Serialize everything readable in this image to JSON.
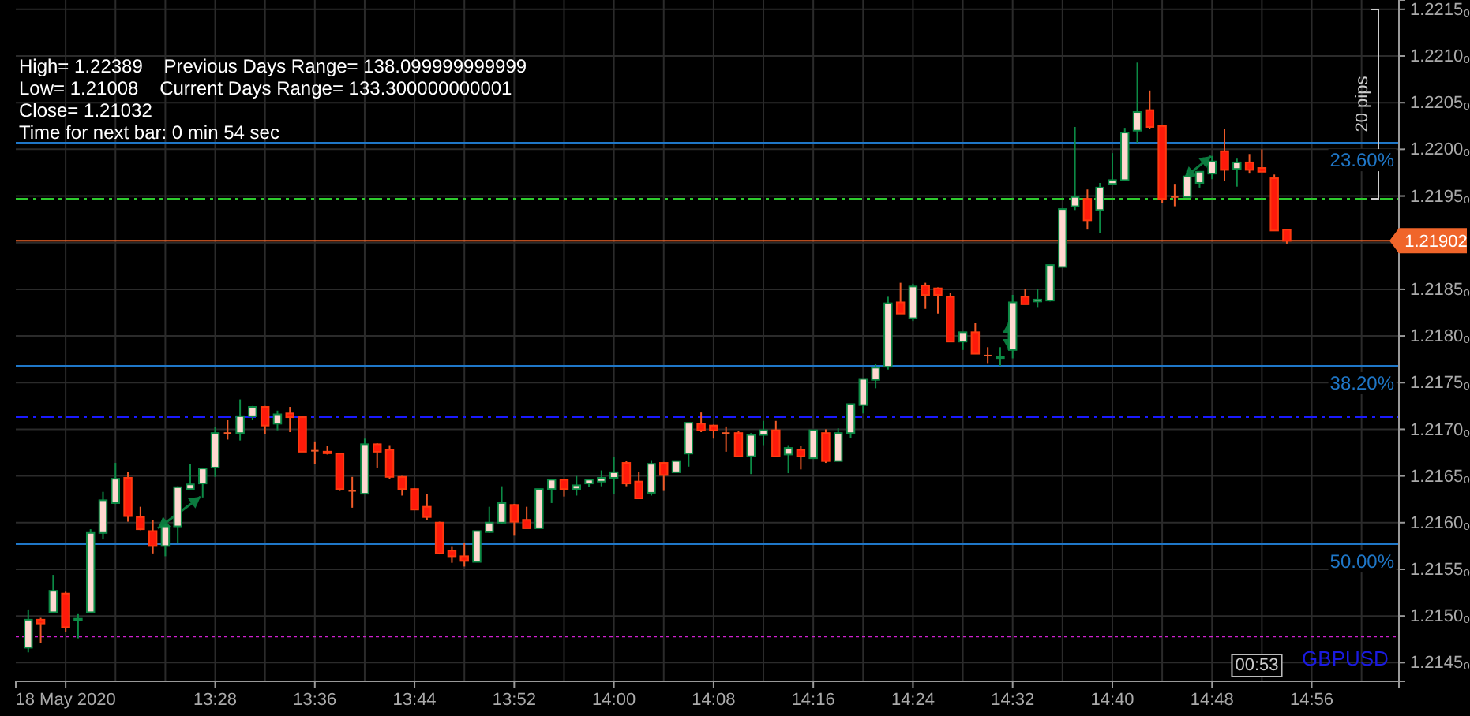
{
  "chart_data": {
    "type": "candlestick",
    "x": [
      "2020-05-18T13:13",
      "2020-05-18T13:14",
      "2020-05-18T13:15",
      "2020-05-18T13:16",
      "2020-05-18T13:17",
      "2020-05-18T13:18",
      "2020-05-18T13:19",
      "2020-05-18T13:20",
      "2020-05-18T13:21",
      "2020-05-18T13:22",
      "2020-05-18T13:23",
      "2020-05-18T13:24",
      "2020-05-18T13:25",
      "2020-05-18T13:26",
      "2020-05-18T13:27",
      "2020-05-18T13:28",
      "2020-05-18T13:29",
      "2020-05-18T13:30",
      "2020-05-18T13:31",
      "2020-05-18T13:32",
      "2020-05-18T13:33",
      "2020-05-18T13:34",
      "2020-05-18T13:35",
      "2020-05-18T13:36",
      "2020-05-18T13:37",
      "2020-05-18T13:38",
      "2020-05-18T13:39",
      "2020-05-18T13:40",
      "2020-05-18T13:41",
      "2020-05-18T13:42",
      "2020-05-18T13:43",
      "2020-05-18T13:44",
      "2020-05-18T13:45",
      "2020-05-18T13:46",
      "2020-05-18T13:47",
      "2020-05-18T13:48",
      "2020-05-18T13:49",
      "2020-05-18T13:50",
      "2020-05-18T13:51",
      "2020-05-18T13:52",
      "2020-05-18T13:53",
      "2020-05-18T13:54",
      "2020-05-18T13:55",
      "2020-05-18T13:56",
      "2020-05-18T13:57",
      "2020-05-18T13:58",
      "2020-05-18T13:59",
      "2020-05-18T14:00",
      "2020-05-18T14:01",
      "2020-05-18T14:02",
      "2020-05-18T14:03",
      "2020-05-18T14:04",
      "2020-05-18T14:05",
      "2020-05-18T14:06",
      "2020-05-18T14:07",
      "2020-05-18T14:08",
      "2020-05-18T14:09",
      "2020-05-18T14:10",
      "2020-05-18T14:11",
      "2020-05-18T14:12",
      "2020-05-18T14:13",
      "2020-05-18T14:14",
      "2020-05-18T14:15",
      "2020-05-18T14:16",
      "2020-05-18T14:17",
      "2020-05-18T14:18",
      "2020-05-18T14:19",
      "2020-05-18T14:20",
      "2020-05-18T14:21",
      "2020-05-18T14:22",
      "2020-05-18T14:23",
      "2020-05-18T14:24",
      "2020-05-18T14:25",
      "2020-05-18T14:26",
      "2020-05-18T14:27",
      "2020-05-18T14:28",
      "2020-05-18T14:29",
      "2020-05-18T14:30",
      "2020-05-18T14:31",
      "2020-05-18T14:32",
      "2020-05-18T14:33",
      "2020-05-18T14:34",
      "2020-05-18T14:35",
      "2020-05-18T14:36",
      "2020-05-18T14:37",
      "2020-05-18T14:38",
      "2020-05-18T14:39",
      "2020-05-18T14:40",
      "2020-05-18T14:41",
      "2020-05-18T14:42",
      "2020-05-18T14:43",
      "2020-05-18T14:44",
      "2020-05-18T14:45",
      "2020-05-18T14:46",
      "2020-05-18T14:47",
      "2020-05-18T14:48",
      "2020-05-18T14:49",
      "2020-05-18T14:50",
      "2020-05-18T14:51",
      "2020-05-18T14:52",
      "2020-05-18T14:53",
      "2020-05-18T14:54"
    ],
    "ohlc": [
      [
        1.21466,
        1.21507,
        1.21461,
        1.21496
      ],
      [
        1.21496,
        1.21498,
        1.21471,
        1.21492
      ],
      [
        1.21504,
        1.21544,
        1.21503,
        1.21527
      ],
      [
        1.21524,
        1.21526,
        1.21483,
        1.21488
      ],
      [
        1.21496,
        1.21502,
        1.21476,
        1.21497
      ],
      [
        1.21504,
        1.21593,
        1.21503,
        1.21589
      ],
      [
        1.21589,
        1.21633,
        1.21582,
        1.21624
      ],
      [
        1.21621,
        1.21664,
        1.2162,
        1.21647
      ],
      [
        1.21648,
        1.21654,
        1.21601,
        1.21607
      ],
      [
        1.21606,
        1.21617,
        1.21592,
        1.21593
      ],
      [
        1.21591,
        1.21603,
        1.21567,
        1.21575
      ],
      [
        1.21575,
        1.21599,
        1.21564,
        1.21596
      ],
      [
        1.21596,
        1.21639,
        1.21578,
        1.21638
      ],
      [
        1.21636,
        1.21663,
        1.21636,
        1.21641
      ],
      [
        1.21642,
        1.21659,
        1.21627,
        1.21658
      ],
      [
        1.21659,
        1.21702,
        1.21649,
        1.21696
      ],
      [
        1.21696,
        1.2171,
        1.21689,
        1.21696
      ],
      [
        1.21696,
        1.21732,
        1.21688,
        1.21714
      ],
      [
        1.21714,
        1.21725,
        1.2171,
        1.21724
      ],
      [
        1.21724,
        1.21725,
        1.21695,
        1.21704
      ],
      [
        1.21706,
        1.2172,
        1.21699,
        1.21716
      ],
      [
        1.21717,
        1.21724,
        1.21697,
        1.21713
      ],
      [
        1.21713,
        1.21714,
        1.21676,
        1.21676
      ],
      [
        1.21677,
        1.21687,
        1.21663,
        1.21677
      ],
      [
        1.21676,
        1.21682,
        1.21673,
        1.21675
      ],
      [
        1.21674,
        1.21675,
        1.21634,
        1.21636
      ],
      [
        1.21634,
        1.21649,
        1.21616,
        1.21634
      ],
      [
        1.21631,
        1.2169,
        1.21631,
        1.21684
      ],
      [
        1.21684,
        1.21685,
        1.21659,
        1.21676
      ],
      [
        1.21678,
        1.21683,
        1.21647,
        1.21649
      ],
      [
        1.21649,
        1.2165,
        1.21629,
        1.21636
      ],
      [
        1.21636,
        1.21637,
        1.21614,
        1.21614
      ],
      [
        1.21617,
        1.21631,
        1.21603,
        1.21606
      ],
      [
        1.216,
        1.21601,
        1.21566,
        1.21567
      ],
      [
        1.2157,
        1.21574,
        1.21557,
        1.21564
      ],
      [
        1.21564,
        1.21578,
        1.21553,
        1.21559
      ],
      [
        1.21558,
        1.21591,
        1.21558,
        1.21591
      ],
      [
        1.2159,
        1.21617,
        1.21589,
        1.216
      ],
      [
        1.216,
        1.21639,
        1.21599,
        1.21621
      ],
      [
        1.21619,
        1.2162,
        1.21586,
        1.21601
      ],
      [
        1.21603,
        1.21617,
        1.21594,
        1.21594
      ],
      [
        1.21594,
        1.21636,
        1.21594,
        1.21636
      ],
      [
        1.21636,
        1.21646,
        1.21621,
        1.21646
      ],
      [
        1.21646,
        1.21647,
        1.21628,
        1.21636
      ],
      [
        1.21636,
        1.2165,
        1.21629,
        1.2164
      ],
      [
        1.21642,
        1.21646,
        1.21638,
        1.21646
      ],
      [
        1.21644,
        1.21656,
        1.21639,
        1.21648
      ],
      [
        1.21648,
        1.2167,
        1.21631,
        1.21654
      ],
      [
        1.21664,
        1.21666,
        1.21639,
        1.21642
      ],
      [
        1.21644,
        1.21654,
        1.21626,
        1.21626
      ],
      [
        1.21632,
        1.21667,
        1.21629,
        1.21663
      ],
      [
        1.21664,
        1.21665,
        1.21634,
        1.21651
      ],
      [
        1.21654,
        1.21666,
        1.21654,
        1.21666
      ],
      [
        1.21674,
        1.21707,
        1.2166,
        1.21707
      ],
      [
        1.21706,
        1.21718,
        1.21697,
        1.21699
      ],
      [
        1.21704,
        1.21705,
        1.2169,
        1.21699
      ],
      [
        1.21696,
        1.21703,
        1.21676,
        1.21696
      ],
      [
        1.21696,
        1.21698,
        1.21671,
        1.21671
      ],
      [
        1.21671,
        1.21696,
        1.21652,
        1.21694
      ],
      [
        1.21694,
        1.21709,
        1.21683,
        1.21699
      ],
      [
        1.21699,
        1.21709,
        1.21671,
        1.21671
      ],
      [
        1.21673,
        1.21683,
        1.21653,
        1.2168
      ],
      [
        1.21678,
        1.21682,
        1.21657,
        1.21671
      ],
      [
        1.21669,
        1.21699,
        1.21669,
        1.21699
      ],
      [
        1.21696,
        1.217,
        1.21664,
        1.21666
      ],
      [
        1.21666,
        1.21701,
        1.21666,
        1.21696
      ],
      [
        1.21696,
        1.21727,
        1.21691,
        1.21727
      ],
      [
        1.21726,
        1.21754,
        1.21717,
        1.21754
      ],
      [
        1.21753,
        1.2177,
        1.21744,
        1.21766
      ],
      [
        1.21767,
        1.21842,
        1.21764,
        1.21835
      ],
      [
        1.21836,
        1.21857,
        1.21824,
        1.21824
      ],
      [
        1.21819,
        1.21856,
        1.21816,
        1.21853
      ],
      [
        1.21854,
        1.21857,
        1.21829,
        1.21844
      ],
      [
        1.21851,
        1.21852,
        1.21824,
        1.21844
      ],
      [
        1.21842,
        1.21846,
        1.21794,
        1.21794
      ],
      [
        1.21794,
        1.21804,
        1.21785,
        1.21804
      ],
      [
        1.21804,
        1.21814,
        1.21781,
        1.21781
      ],
      [
        1.21779,
        1.21788,
        1.21771,
        1.21779
      ],
      [
        1.21777,
        1.21788,
        1.21768,
        1.21778
      ],
      [
        1.21785,
        1.21844,
        1.21776,
        1.21836
      ],
      [
        1.21842,
        1.2185,
        1.21834,
        1.21834
      ],
      [
        1.21837,
        1.2185,
        1.21831,
        1.21839
      ],
      [
        1.21838,
        1.21876,
        1.21837,
        1.21876
      ],
      [
        1.21874,
        1.21936,
        1.21874,
        1.21936
      ],
      [
        1.21939,
        1.22024,
        1.21935,
        1.21949
      ],
      [
        1.21947,
        1.21957,
        1.21914,
        1.21924
      ],
      [
        1.21935,
        1.21964,
        1.2191,
        1.21959
      ],
      [
        1.21963,
        1.21996,
        1.21963,
        1.21967
      ],
      [
        1.21967,
        1.22023,
        1.21967,
        1.22018
      ],
      [
        1.2202,
        1.22093,
        1.22007,
        1.2204
      ],
      [
        1.22042,
        1.22063,
        1.22022,
        1.22024
      ],
      [
        1.22025,
        1.22026,
        1.21942,
        1.21947
      ],
      [
        1.21949,
        1.21963,
        1.21939,
        1.21949
      ],
      [
        1.21949,
        1.21977,
        1.21949,
        1.21971
      ],
      [
        1.21964,
        1.21976,
        1.21959,
        1.21976
      ],
      [
        1.21974,
        1.21993,
        1.21968,
        1.21987
      ],
      [
        1.21998,
        1.22022,
        1.21966,
        1.21978
      ],
      [
        1.21979,
        1.2199,
        1.2196,
        1.21986
      ],
      [
        1.21986,
        1.21995,
        1.21974,
        1.21978
      ],
      [
        1.2198,
        1.22,
        1.21976,
        1.21976
      ],
      [
        1.21969,
        1.21973,
        1.21913,
        1.21913
      ],
      [
        1.21914,
        1.21914,
        1.21899,
        1.21902
      ]
    ],
    "xlim": [
      "2020-05-18T13:12",
      "2020-05-18T15:03"
    ],
    "xticks": [
      {
        "value": "2020-05-18T13:16",
        "label": "18 May 2020"
      },
      {
        "value": "2020-05-18T13:20",
        "label": null
      },
      {
        "value": "2020-05-18T13:24",
        "label": null
      },
      {
        "value": "2020-05-18T13:28",
        "label": "13:28"
      },
      {
        "value": "2020-05-18T13:32",
        "label": null
      },
      {
        "value": "2020-05-18T13:36",
        "label": "13:36"
      },
      {
        "value": "2020-05-18T13:40",
        "label": null
      },
      {
        "value": "2020-05-18T13:44",
        "label": "13:44"
      },
      {
        "value": "2020-05-18T13:48",
        "label": null
      },
      {
        "value": "2020-05-18T13:52",
        "label": "13:52"
      },
      {
        "value": "2020-05-18T13:56",
        "label": null
      },
      {
        "value": "2020-05-18T14:00",
        "label": "14:00"
      },
      {
        "value": "2020-05-18T14:04",
        "label": null
      },
      {
        "value": "2020-05-18T14:08",
        "label": "14:08"
      },
      {
        "value": "2020-05-18T14:12",
        "label": null
      },
      {
        "value": "2020-05-18T14:16",
        "label": "14:16"
      },
      {
        "value": "2020-05-18T14:20",
        "label": null
      },
      {
        "value": "2020-05-18T14:24",
        "label": "14:24"
      },
      {
        "value": "2020-05-18T14:28",
        "label": null
      },
      {
        "value": "2020-05-18T14:32",
        "label": "14:32"
      },
      {
        "value": "2020-05-18T14:36",
        "label": null
      },
      {
        "value": "2020-05-18T14:40",
        "label": "14:40"
      },
      {
        "value": "2020-05-18T14:44",
        "label": null
      },
      {
        "value": "2020-05-18T14:48",
        "label": "14:48"
      },
      {
        "value": "2020-05-18T14:52",
        "label": null
      },
      {
        "value": "2020-05-18T14:56",
        "label": "14:56"
      },
      {
        "value": "2020-05-18T15:00",
        "label": null
      }
    ],
    "ylim": [
      1.2143,
      1.2216
    ],
    "yticks": [
      {
        "value": 1.2145,
        "label": "1.2145₀"
      },
      {
        "value": 1.215,
        "label": "1.2150₀"
      },
      {
        "value": 1.2155,
        "label": "1.2155₀"
      },
      {
        "value": 1.216,
        "label": "1.2160₀"
      },
      {
        "value": 1.2165,
        "label": "1.2165₀"
      },
      {
        "value": 1.217,
        "label": "1.2170₀"
      },
      {
        "value": 1.2175,
        "label": "1.2175₀"
      },
      {
        "value": 1.218,
        "label": "1.2180₀"
      },
      {
        "value": 1.2185,
        "label": "1.2185₀"
      },
      {
        "value": 1.219,
        "label": null
      },
      {
        "value": 1.2195,
        "label": "1.2195₀"
      },
      {
        "value": 1.22,
        "label": "1.2200₀"
      },
      {
        "value": 1.2205,
        "label": "1.2205₀"
      },
      {
        "value": 1.221,
        "label": "1.2210₀"
      },
      {
        "value": 1.2215,
        "label": "1.2215₀"
      }
    ],
    "grid": true,
    "ref_lines": [
      {
        "axis": "y",
        "value": 1.22007,
        "color": "#1f77c8",
        "line_style": "solid"
      },
      {
        "axis": "y",
        "value": 1.21768,
        "color": "#1f77c8",
        "line_style": "solid"
      },
      {
        "axis": "y",
        "value": 1.21577,
        "color": "#1f77c8",
        "line_style": "solid"
      },
      {
        "axis": "y",
        "value": 1.21713,
        "color": "#1a1aff",
        "line_style": "dashed"
      },
      {
        "axis": "y",
        "value": 1.21947,
        "color": "#2ecc2e",
        "line_style": "dashed"
      },
      {
        "axis": "y",
        "value": 1.21478,
        "color": "#d020d0",
        "line_style": "dotted"
      },
      {
        "axis": "y",
        "value": 1.21902,
        "label": "1.21902",
        "color": "#f0652a",
        "line_style": "solid"
      }
    ],
    "annotations": [
      "High= 1.22389    Previous Days Range= 138.099999999999",
      "Low= 1.21008    Current Days Range= 133.300000000001",
      "Close= 1.21032",
      "Time for next bar: 0 min 54 sec",
      "20 pips",
      {
        "text": "23.60%",
        "x": "2020-05-18T15:03",
        "y": 1.22007
      },
      {
        "text": "38.20%",
        "x": "2020-05-18T15:03",
        "y": 1.21768
      },
      {
        "text": "50.00%",
        "x": "2020-05-18T15:03",
        "y": 1.21577
      },
      "GBPUSD",
      "00:53"
    ]
  }
}
